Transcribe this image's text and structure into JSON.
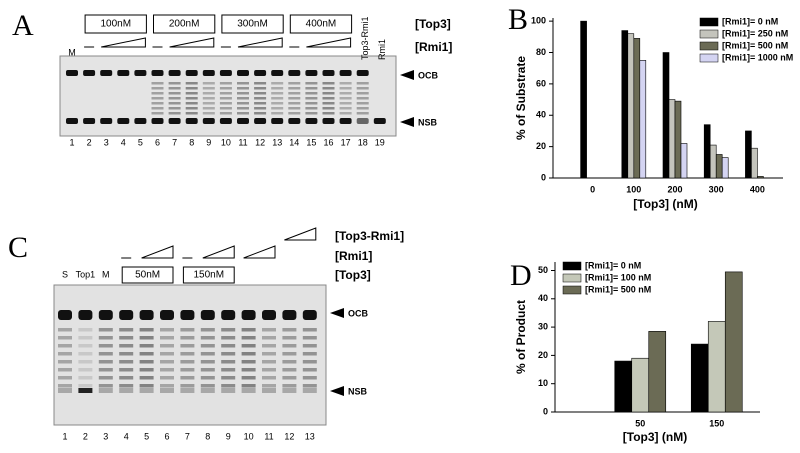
{
  "panel_letters": [
    "A",
    "B",
    "C",
    "D"
  ],
  "panel_a": {
    "concentrations": [
      "100nM",
      "200nM",
      "300nM",
      "400nM"
    ],
    "top3_label": "[Top3]",
    "rmi1_label": "[Rmi1]",
    "marker": "M",
    "lane_labels": [
      "Top3-Rmi1",
      "Rmi1"
    ],
    "lanes": [
      "1",
      "2",
      "3",
      "4",
      "5",
      "6",
      "7",
      "8",
      "9",
      "10",
      "11",
      "12",
      "13",
      "14",
      "15",
      "16",
      "17",
      "18",
      "19"
    ],
    "ocb": "OCB",
    "nsb": "NSB"
  },
  "panel_c": {
    "concentrations": [
      "50nM",
      "150nM"
    ],
    "top3_rmi1_label": "[Top3-Rmi1]",
    "rmi1_label": "[Rmi1]",
    "top3_label": "[Top3]",
    "lane_labels": [
      "S",
      "Top1",
      "M"
    ],
    "lanes": [
      "1",
      "2",
      "3",
      "4",
      "5",
      "6",
      "7",
      "8",
      "9",
      "10",
      "11",
      "12",
      "13"
    ],
    "ocb": "OCB",
    "nsb": "NSB"
  },
  "chart_data": [
    {
      "type": "bar",
      "y_label": "% of Substrate",
      "x_label": "[Top3] (nM)",
      "categories": [
        "0",
        "100",
        "200",
        "300",
        "400"
      ],
      "series": [
        {
          "name": "[Rmi1]= 0 nM",
          "color": "#000000",
          "values": [
            100,
            94,
            80,
            34,
            30
          ]
        },
        {
          "name": "[Rmi1]= 250 nM",
          "color": "#c4c4bc",
          "values": [
            null,
            92,
            50,
            21,
            19
          ]
        },
        {
          "name": "[Rmi1]= 500 nM",
          "color": "#6b6b55",
          "values": [
            null,
            89,
            49,
            15,
            1
          ]
        },
        {
          "name": "[Rmi1]= 1000 nM",
          "color": "#d4d4f2",
          "values": [
            null,
            75,
            22,
            13,
            0
          ]
        }
      ],
      "ylim": [
        0,
        102
      ],
      "yticks": [
        0,
        20,
        40,
        60,
        80,
        100
      ],
      "legend": "top-right"
    },
    {
      "type": "bar",
      "y_label": "% of Product",
      "x_label": "[Top3] (nM)",
      "categories": [
        "50",
        "150"
      ],
      "series": [
        {
          "name": "[Rmi1]= 0 nM",
          "color": "#000000",
          "values": [
            18,
            24
          ]
        },
        {
          "name": "[Rmi1]= 100 nM",
          "color": "#c4c8b8",
          "values": [
            19,
            32
          ]
        },
        {
          "name": "[Rmi1]= 500 nM",
          "color": "#6b6b55",
          "values": [
            28.5,
            49.5
          ]
        }
      ],
      "ylim": [
        0,
        53
      ],
      "yticks": [
        0,
        10,
        20,
        30,
        40,
        50
      ],
      "legend": "top-left"
    }
  ]
}
